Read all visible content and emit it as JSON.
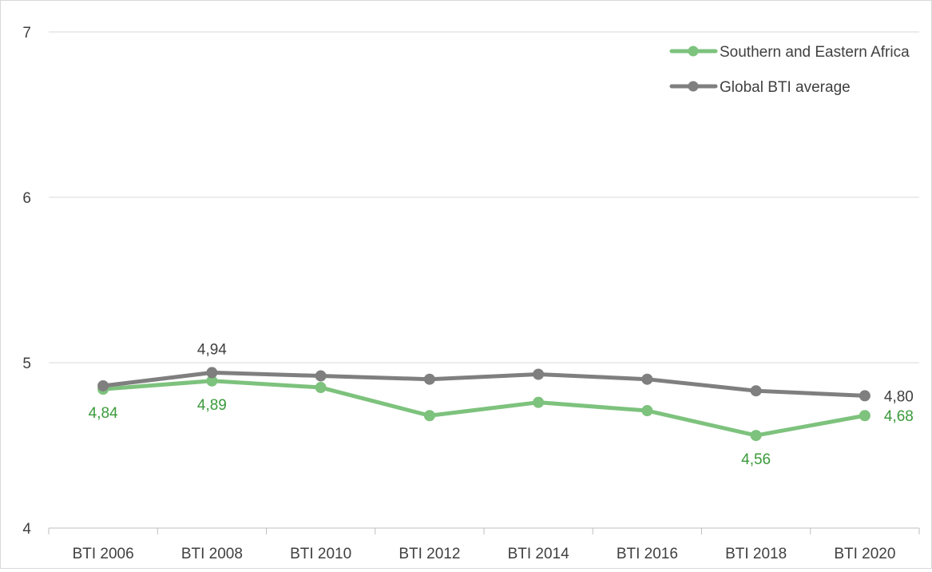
{
  "chart_data": {
    "type": "line",
    "categories": [
      "BTI 2006",
      "BTI 2008",
      "BTI 2010",
      "BTI 2012",
      "BTI 2014",
      "BTI 2016",
      "BTI 2018",
      "BTI 2020"
    ],
    "ylim": [
      4,
      7
    ],
    "yticks": [
      "4",
      "5",
      "6",
      "7"
    ],
    "grid": true,
    "legend_position": "top-right",
    "series": [
      {
        "name": "Southern and Eastern Africa",
        "color": "#7dc27d",
        "values": [
          4.84,
          4.89,
          4.85,
          4.68,
          4.76,
          4.71,
          4.56,
          4.68
        ],
        "data_labels": [
          {
            "index": 0,
            "text": "4,84",
            "placement": "below"
          },
          {
            "index": 1,
            "text": "4,89",
            "placement": "below"
          },
          {
            "index": 6,
            "text": "4,56",
            "placement": "below"
          },
          {
            "index": 7,
            "text": "4,68",
            "placement": "right"
          }
        ],
        "label_color": "#3a9a3a"
      },
      {
        "name": "Global BTI average",
        "color": "#7f7f7f",
        "values": [
          4.86,
          4.94,
          4.92,
          4.9,
          4.93,
          4.9,
          4.83,
          4.8
        ],
        "data_labels": [
          {
            "index": 1,
            "text": "4,94",
            "placement": "above"
          },
          {
            "index": 7,
            "text": "4,80",
            "placement": "right"
          }
        ],
        "label_color": "#404040"
      }
    ]
  }
}
